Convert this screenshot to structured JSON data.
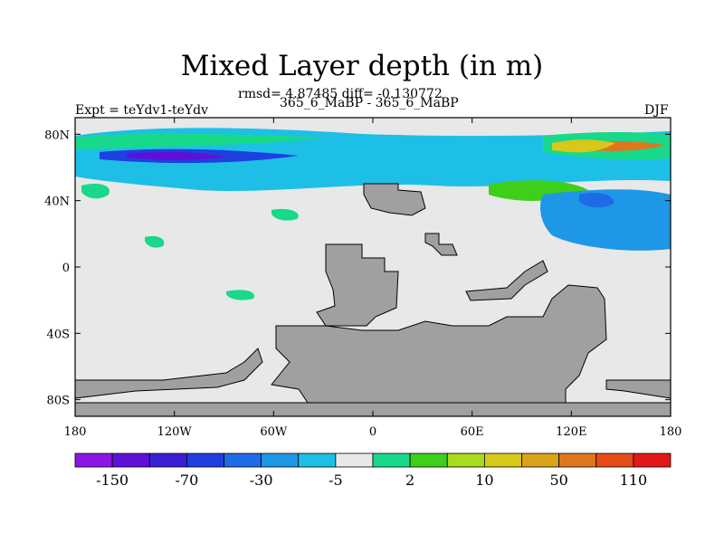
{
  "chart_data": {
    "type": "heatmap",
    "title": "Mixed Layer depth (in m)",
    "stats": "rmsd= 4.87485 diff= -0.130772",
    "subtitle": "365_6_MaBP - 365_6_MaBP",
    "left_label": "Expt = teYdv1-teYdv",
    "right_label": "DJF",
    "x_ticks": [
      "180",
      "120W",
      "60W",
      "0",
      "60E",
      "120E",
      "180"
    ],
    "x_values": [
      -180,
      -120,
      -60,
      0,
      60,
      120,
      180
    ],
    "y_ticks": [
      "80N",
      "40N",
      "0",
      "40S",
      "80S"
    ],
    "y_values": [
      80,
      40,
      0,
      -40,
      -80
    ],
    "xlim": [
      -180,
      180
    ],
    "ylim": [
      -90,
      90
    ],
    "colorbar": {
      "colors": [
        "#8a17e6",
        "#5e10d8",
        "#3b1fd6",
        "#1f3fe0",
        "#1f6ae6",
        "#1e97e6",
        "#1ebfe6",
        "#e8e8e8",
        "#18d98a",
        "#3ecf1a",
        "#a8dc1c",
        "#d7c81a",
        "#d9a31a",
        "#e0761c",
        "#e64b1a",
        "#e21717"
      ],
      "labels": [
        "-150",
        "-70",
        "-30",
        "-5",
        "2",
        "10",
        "50",
        "110"
      ]
    },
    "land_color": "#a0a0a0",
    "background_color": "#e8e8e8"
  }
}
